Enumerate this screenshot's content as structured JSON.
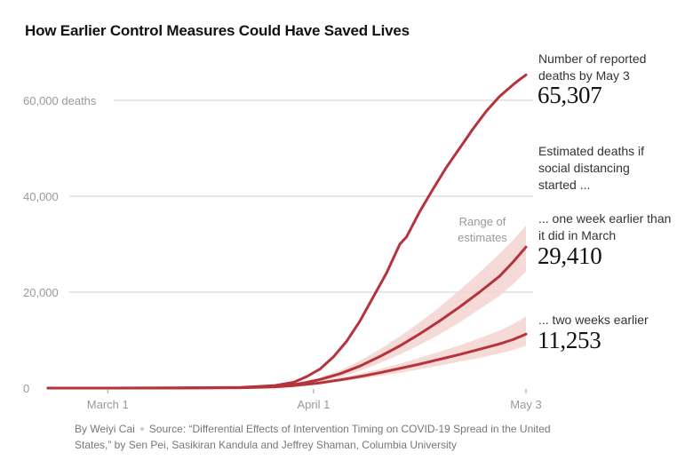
{
  "chart_data": {
    "type": "line",
    "title": "How Earlier Control Measures Could Have Saved Lives",
    "xlabel": "",
    "ylabel": "deaths",
    "x_tick_labels": [
      "March 1",
      "April 1",
      "May 3"
    ],
    "x_tick_days": [
      0,
      31,
      63
    ],
    "y_ticks": [
      0,
      20000,
      40000,
      60000
    ],
    "y_tick_labels": [
      "0",
      "20,000",
      "40,000",
      "60,000 deaths"
    ],
    "xlim": [
      -9,
      63
    ],
    "ylim": [
      0,
      60000
    ],
    "series": [
      {
        "name": "Reported deaths",
        "end_value": "65,307",
        "x": [
          -9,
          0,
          10,
          20,
          25,
          28,
          30,
          32,
          34,
          36,
          38,
          40,
          42,
          44,
          45,
          47,
          49,
          51,
          53,
          55,
          57,
          59,
          61,
          62,
          63
        ],
        "y": [
          0,
          5,
          20,
          150,
          500,
          1200,
          2400,
          4000,
          6500,
          9800,
          14000,
          19000,
          24000,
          30000,
          31500,
          36800,
          41500,
          46000,
          50000,
          54000,
          57700,
          60800,
          63200,
          64300,
          65307
        ]
      },
      {
        "name": "One week earlier",
        "end_value": "29,410",
        "x": [
          -9,
          0,
          10,
          20,
          25,
          28,
          30,
          32,
          35,
          38,
          41,
          44,
          47,
          50,
          53,
          56,
          59,
          61,
          63
        ],
        "y": [
          0,
          5,
          20,
          100,
          300,
          700,
          1200,
          1800,
          3000,
          4600,
          6600,
          8800,
          11300,
          14000,
          16900,
          20000,
          23300,
          26200,
          29410
        ],
        "band_low": [
          0,
          5,
          20,
          90,
          260,
          580,
          950,
          1400,
          2300,
          3600,
          5200,
          7000,
          9000,
          11200,
          13700,
          16400,
          19200,
          21600,
          24300
        ],
        "band_high": [
          0,
          5,
          20,
          110,
          340,
          820,
          1450,
          2200,
          3700,
          5700,
          8100,
          10800,
          13700,
          16900,
          20400,
          24100,
          28000,
          30800,
          33900
        ]
      },
      {
        "name": "Two weeks earlier",
        "end_value": "11,253",
        "x": [
          -9,
          0,
          10,
          20,
          25,
          28,
          30,
          32,
          35,
          38,
          41,
          44,
          47,
          50,
          53,
          56,
          59,
          61,
          63
        ],
        "y": [
          0,
          5,
          15,
          80,
          220,
          500,
          800,
          1100,
          1700,
          2400,
          3200,
          4100,
          5000,
          6000,
          7000,
          8100,
          9200,
          10100,
          11253
        ],
        "band_low": [
          0,
          5,
          15,
          70,
          190,
          420,
          650,
          900,
          1350,
          1900,
          2500,
          3200,
          3900,
          4700,
          5500,
          6300,
          7200,
          7900,
          8800
        ],
        "band_high": [
          0,
          5,
          15,
          90,
          260,
          600,
          980,
          1350,
          2150,
          3000,
          4000,
          5100,
          6300,
          7600,
          8900,
          10400,
          12000,
          13300,
          14900
        ]
      }
    ],
    "annotations": {
      "reported": "Number of reported deaths by May 3",
      "estimated": "Estimated deaths if social distancing started ...",
      "one_week": "... one week earlier than it did in March",
      "two_weeks": "... two weeks earlier",
      "range": "Range of estimates"
    },
    "colors": {
      "line": "#b5333a",
      "band": "#f3d3d0",
      "grid": "#cccccc",
      "axis": "#999999"
    }
  },
  "credits": {
    "byline": "By Weiyi Cai",
    "source_line1": "Source: “Differential Effects of Intervention Timing on COVID-19 Spread in the United",
    "source_line2": "States,” by Sen Pei, Sasikiran Kandula and Jeffrey Shaman, Columbia University"
  }
}
